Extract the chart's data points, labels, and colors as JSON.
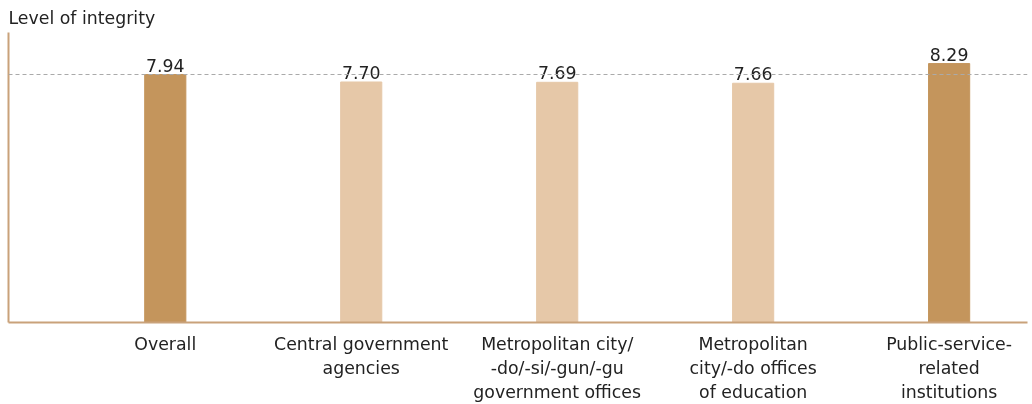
{
  "chart_data": {
    "type": "bar",
    "annotations": [
      "Level of integrity"
    ],
    "categories": [
      "Overall",
      "Central government agencies",
      "Metropolitan city/-do/-si/-gun/-gu government offices",
      "Metropolitan city/-do offices of education",
      "Public-service-related institutions"
    ],
    "values": [
      7.94,
      7.7,
      7.69,
      7.66,
      8.29
    ],
    "colors": [
      "#c4955c",
      "#e6c8a8",
      "#e6c8a8",
      "#e6c8a8",
      "#c4955c"
    ],
    "value_labels": [
      "7.94",
      "7.70",
      "7.69",
      "7.66",
      "8.29"
    ],
    "tick_labels": "x",
    "ref_lines": [
      {
        "axis": "y",
        "value": 7.94,
        "color": "#aaaaaa",
        "line_style": "dashed"
      }
    ]
  }
}
